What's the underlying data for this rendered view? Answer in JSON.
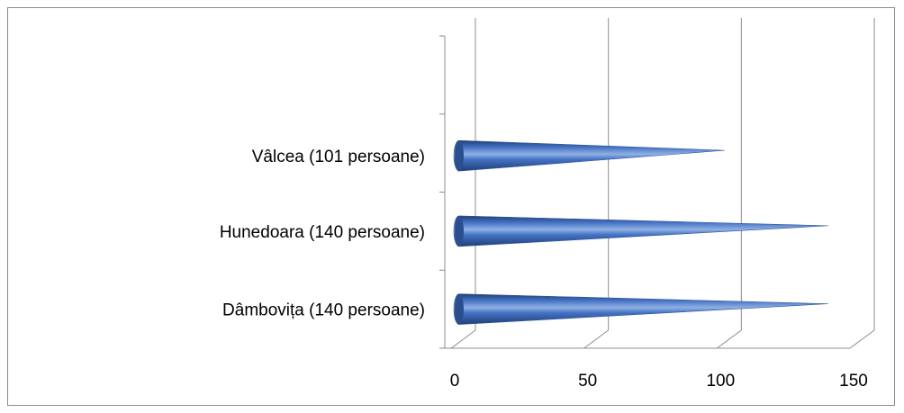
{
  "chart_data": {
    "type": "bar",
    "orientation": "horizontal",
    "style": "3d-cone",
    "categories": [
      "Vâlcea  (101 persoane)",
      "Hunedoara  (140 persoane)",
      "Dâmbovița  (140 persoane)"
    ],
    "values": [
      101,
      140,
      140
    ],
    "x_ticks": [
      "0",
      "50",
      "100",
      "150"
    ],
    "xlim": [
      0,
      150
    ],
    "grid": true,
    "title": "",
    "xlabel": "",
    "ylabel": "",
    "colors": {
      "bar": "#4472c4",
      "bar_dark": "#1f3f75",
      "bar_light": "#8fb0e3",
      "grid": "#8c8c8c"
    }
  }
}
